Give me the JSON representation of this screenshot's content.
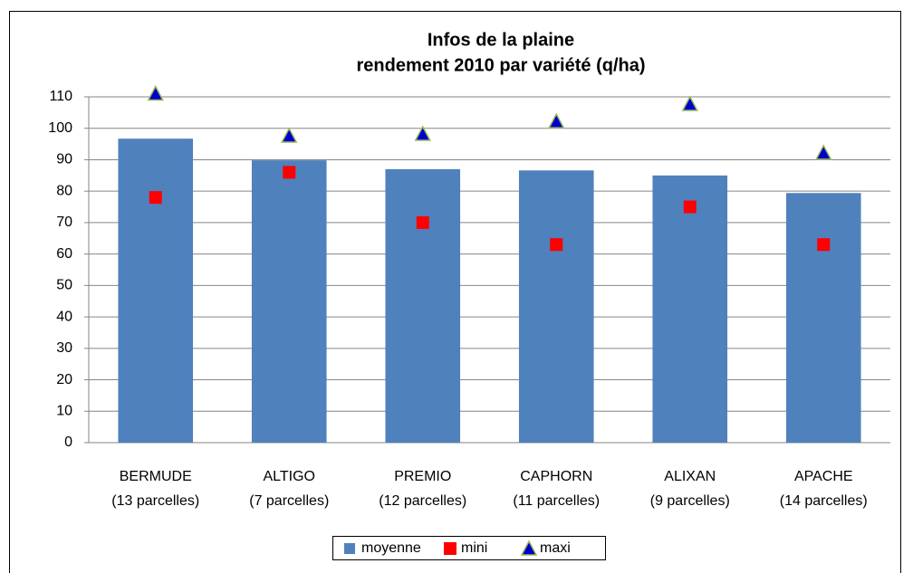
{
  "chart_data": {
    "type": "bar",
    "title": "Infos de la plaine",
    "subtitle": "rendement 2010 par variété (q/ha)",
    "categories": [
      [
        "BERMUDE",
        "(13 parcelles)"
      ],
      [
        "ALTIGO",
        "(7 parcelles)"
      ],
      [
        "PREMIO",
        "(12 parcelles)"
      ],
      [
        "CAPHORN",
        "(11 parcelles)"
      ],
      [
        "ALIXAN",
        "(9 parcelles)"
      ],
      [
        "APACHE",
        "(14 parcelles)"
      ]
    ],
    "series": [
      {
        "name": "moyenne",
        "type": "bar",
        "color": "#4f81bd",
        "values": [
          96.7,
          89.8,
          87,
          86.6,
          85,
          79.4
        ]
      },
      {
        "name": "mini",
        "type": "square",
        "color": "#ff0000",
        "values": [
          78,
          86,
          70,
          63,
          75,
          63
        ]
      },
      {
        "name": "maxi",
        "type": "triangle",
        "color": "#0000cc",
        "values": [
          111,
          97.6,
          98.2,
          102.2,
          107.7,
          92.2
        ]
      }
    ],
    "ylim": [
      0,
      110
    ],
    "yticks": [
      0,
      10,
      20,
      30,
      40,
      50,
      60,
      70,
      80,
      90,
      100,
      110
    ],
    "grid": true,
    "legend": "bottom"
  }
}
